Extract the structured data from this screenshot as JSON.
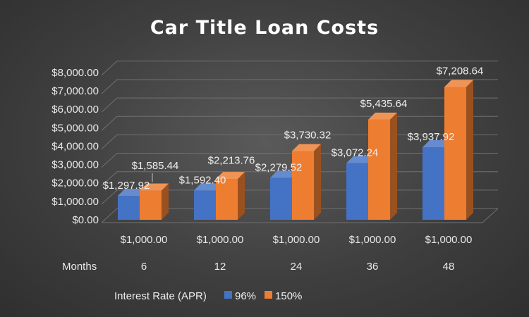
{
  "chart_data": {
    "type": "bar",
    "title": "Car Title Loan Costs",
    "categories": [
      "$1,000.00",
      "$1,000.00",
      "$1,000.00",
      "$1,000.00",
      "$1,000.00"
    ],
    "months_label": "Months",
    "months": [
      "6",
      "12",
      "24",
      "36",
      "48"
    ],
    "legend_title": "Interest Rate (APR)",
    "series": [
      {
        "name": "96%",
        "color": "#4472c4",
        "values": [
          1297.92,
          1592.4,
          2279.52,
          3072.24,
          3937.92
        ],
        "labels": [
          "$1,297.92",
          "$1,592.40",
          "$2,279.52",
          "$3,072.24",
          "$3,937.92"
        ]
      },
      {
        "name": "150%",
        "color": "#ed7d31",
        "values": [
          1585.44,
          2213.76,
          3730.32,
          5435.64,
          7208.64
        ],
        "labels": [
          "$1,585.44",
          "$2,213.76",
          "$3,730.32",
          "$5,435.64",
          "$7,208.64"
        ]
      }
    ],
    "yticks": [
      "$0.00",
      "$1,000.00",
      "$2,000.00",
      "$3,000.00",
      "$4,000.00",
      "$5,000.00",
      "$6,000.00",
      "$7,000.00",
      "$8,000.00"
    ],
    "ylim": [
      0,
      8000
    ],
    "grid": true,
    "legend_position": "bottom"
  }
}
